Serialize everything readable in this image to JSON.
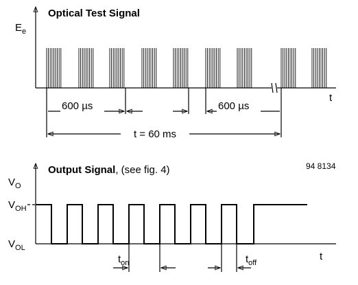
{
  "optical": {
    "title": "Optical Test Signal",
    "y_label": {
      "base": "E",
      "sub": "e"
    },
    "x_label": "t",
    "period_label_1": "600 µs",
    "period_label_2": "600 µs",
    "duration_label": "t = 60 ms"
  },
  "output": {
    "title": "Output Signal",
    "title_note": ", (see fig. 4)",
    "figure_id": "94 8134",
    "y_label": {
      "base": "V",
      "sub": "O"
    },
    "high_label": {
      "base": "V",
      "sub": "OH"
    },
    "low_label": {
      "base": "V",
      "sub": "OL"
    },
    "on_label": {
      "base": "t",
      "sub": "on"
    },
    "off_label": {
      "base": "t",
      "sub": "off"
    },
    "x_label": "t"
  }
}
